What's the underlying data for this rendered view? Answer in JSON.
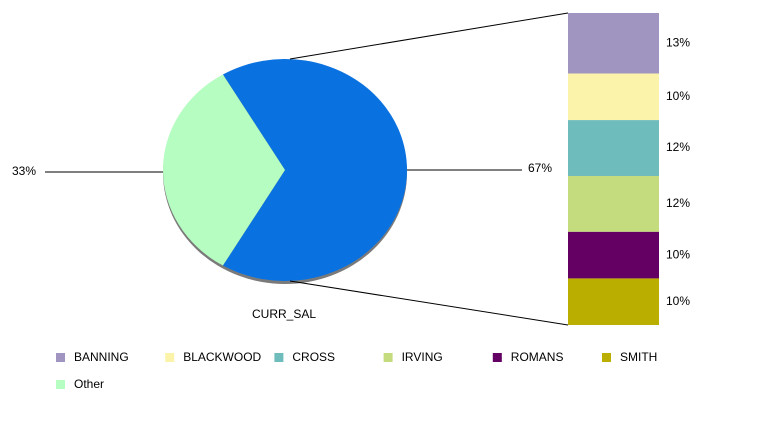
{
  "chart_data": {
    "type": "pie",
    "label": "CURR_SAL",
    "pie": {
      "categories": [
        null,
        "Other"
      ],
      "values": [
        67,
        33
      ],
      "value_labels": [
        "67%",
        "33%"
      ],
      "colors": [
        "#0a72e0",
        "#b5fdc0"
      ]
    },
    "bar": {
      "categories": [
        "BANNING",
        "BLACKWOOD",
        "CROSS",
        "IRVING",
        "ROMANS",
        "SMITH"
      ],
      "values": [
        13,
        10,
        12,
        12,
        10,
        10
      ],
      "value_labels": [
        "13%",
        "10%",
        "12%",
        "12%",
        "10%",
        "10%"
      ],
      "colors": [
        "#a094c0",
        "#fbf3aa",
        "#6fbcbc",
        "#c5dc7e",
        "#640064",
        "#baaf00"
      ]
    }
  }
}
